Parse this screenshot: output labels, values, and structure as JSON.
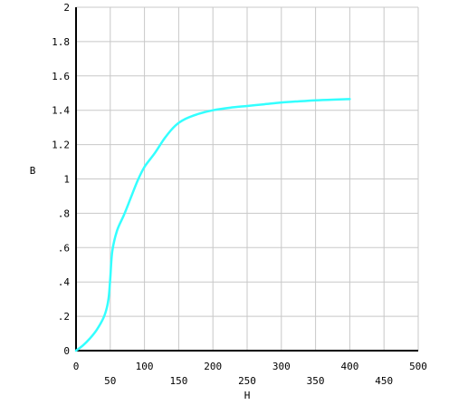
{
  "chart_data": {
    "type": "line",
    "title": "",
    "xlabel": "H",
    "ylabel": "B",
    "xlim": [
      0,
      500
    ],
    "ylim": [
      0,
      2
    ],
    "grid": true,
    "x_ticks": [
      {
        "value": 0,
        "label": "0"
      },
      {
        "value": 50,
        "label": "50"
      },
      {
        "value": 100,
        "label": "100"
      },
      {
        "value": 150,
        "label": "150"
      },
      {
        "value": 200,
        "label": "200"
      },
      {
        "value": 250,
        "label": "250"
      },
      {
        "value": 300,
        "label": "300"
      },
      {
        "value": 350,
        "label": "350"
      },
      {
        "value": 400,
        "label": "400"
      },
      {
        "value": 450,
        "label": "450"
      },
      {
        "value": 500,
        "label": "500"
      }
    ],
    "y_ticks": [
      {
        "value": 0,
        "label": "0"
      },
      {
        "value": 0.2,
        "label": ".2"
      },
      {
        "value": 0.4,
        "label": ".4"
      },
      {
        "value": 0.6,
        "label": ".6"
      },
      {
        "value": 0.8,
        "label": ".8"
      },
      {
        "value": 1.0,
        "label": "1"
      },
      {
        "value": 1.2,
        "label": "1.2"
      },
      {
        "value": 1.4,
        "label": "1.4"
      },
      {
        "value": 1.6,
        "label": "1.6"
      },
      {
        "value": 1.8,
        "label": "1.8"
      },
      {
        "value": 2.0,
        "label": "2"
      }
    ],
    "series": [
      {
        "color": "#33ffff",
        "x": [
          0,
          10,
          20,
          30,
          40,
          45,
          48,
          50,
          53,
          60,
          70,
          80,
          90,
          100,
          115,
          130,
          145,
          160,
          180,
          200,
          225,
          250,
          275,
          300,
          325,
          350,
          375,
          400
        ],
        "y": [
          0,
          0.03,
          0.07,
          0.12,
          0.19,
          0.25,
          0.32,
          0.42,
          0.58,
          0.7,
          0.79,
          0.89,
          0.99,
          1.07,
          1.15,
          1.24,
          1.31,
          1.35,
          1.38,
          1.4,
          1.415,
          1.425,
          1.435,
          1.445,
          1.452,
          1.458,
          1.462,
          1.465
        ]
      }
    ]
  }
}
